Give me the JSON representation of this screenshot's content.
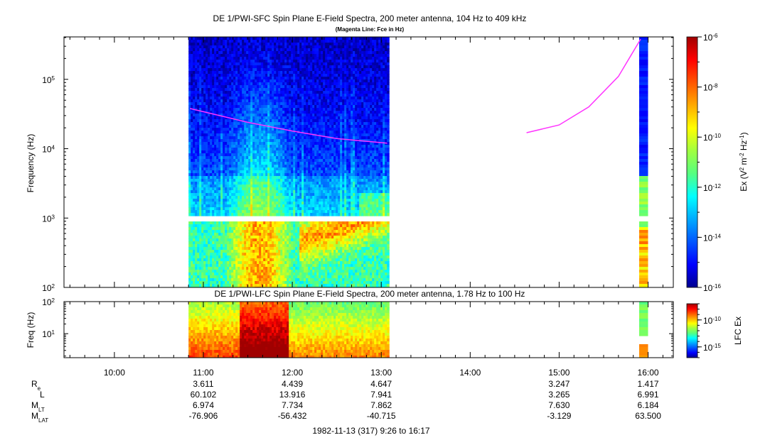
{
  "colors": {
    "fce_line": "#ff33ff",
    "background": "#ffffff",
    "colorscale": [
      "#00008f",
      "#0000ff",
      "#0055ff",
      "#00aaff",
      "#00ffff",
      "#55ff80",
      "#a0ff40",
      "#ffff00",
      "#ffaa00",
      "#ff5500",
      "#ff0000",
      "#a00000"
    ]
  },
  "chart_data": [
    {
      "type": "heatmap",
      "title": "DE 1/PWI-SFC  Spin Plane E-Field Spectra, 200 meter antenna, 104 Hz to 409 kHz",
      "subtitle": "(Magenta Line: Fce in Hz)",
      "ylabel": "Frequency (Hz)",
      "yscale": "log",
      "ylim": [
        100,
        409000
      ],
      "y_ticks": [
        {
          "value": 100,
          "label_base": "10",
          "label_exp": "2"
        },
        {
          "value": 1000,
          "label_base": "10",
          "label_exp": "3"
        },
        {
          "value": 10000,
          "label_base": "10",
          "label_exp": "4"
        },
        {
          "value": 100000,
          "label_base": "10",
          "label_exp": "5"
        }
      ],
      "colorbar": {
        "label": "Ex (V² m⁻² Hz⁻¹)",
        "scale": "log",
        "range": [
          -16,
          -6
        ],
        "ticks": [
          {
            "value": -6,
            "label_base": "10",
            "label_exp": "-6"
          },
          {
            "value": -8,
            "label_base": "10",
            "label_exp": "-8"
          },
          {
            "value": -10,
            "label_base": "10",
            "label_exp": "-10"
          },
          {
            "value": -12,
            "label_base": "10",
            "label_exp": "-12"
          },
          {
            "value": -14,
            "label_base": "10",
            "label_exp": "-14"
          },
          {
            "value": -16,
            "label_base": "10",
            "label_exp": "-16"
          }
        ]
      },
      "data_intervals": [
        "10:50",
        "13:05",
        "15:54",
        "16:00"
      ],
      "series": [
        {
          "name": "Fce",
          "segments": [
            {
              "time": [
                "10:51",
                "11:30",
                "12:00",
                "12:30",
                "13:04"
              ],
              "freq_hz": [
                38000,
                24000,
                18000,
                14000,
                12000
              ]
            },
            {
              "time": [
                "14:38",
                "15:00",
                "15:20",
                "15:40",
                "15:55"
              ],
              "freq_hz": [
                17000,
                22000,
                40000,
                110000,
                380000
              ]
            }
          ]
        }
      ]
    },
    {
      "type": "heatmap",
      "title": "DE 1/PWI-LFC  Spin Plane E-Field Spectra, 200 meter antenna, 1.78 Hz to 100 Hz",
      "ylabel": "Freq (Hz)",
      "yscale": "log",
      "ylim": [
        1.78,
        100
      ],
      "y_ticks": [
        {
          "value": 10,
          "label_base": "10",
          "label_exp": "1"
        },
        {
          "value": 100,
          "label_base": "10",
          "label_exp": "2"
        }
      ],
      "colorbar": {
        "label": "LFC Ex",
        "scale": "log",
        "range": [
          -17,
          -7
        ],
        "ticks": [
          {
            "value": -10,
            "label_base": "10",
            "label_exp": "-10"
          },
          {
            "value": -15,
            "label_base": "10",
            "label_exp": "-15"
          }
        ]
      },
      "data_intervals": [
        "10:50",
        "13:05",
        "15:54",
        "16:00"
      ]
    }
  ],
  "time_axis": {
    "range": [
      "09:26",
      "16:17"
    ],
    "ticks": [
      "10:00",
      "11:00",
      "12:00",
      "13:00",
      "14:00",
      "15:00",
      "16:00"
    ]
  },
  "ephemeris": {
    "rows": [
      {
        "label": "R",
        "sub": "e",
        "values": [
          "3.611",
          "4.439",
          "4.647",
          "",
          "3.247",
          "1.417"
        ]
      },
      {
        "label": "L",
        "sub": "",
        "values": [
          "60.102",
          "13.916",
          "7.941",
          "",
          "3.265",
          "6.991"
        ]
      },
      {
        "label": "M",
        "sub": "LT",
        "values": [
          "6.974",
          "7.734",
          "7.862",
          "",
          "7.630",
          "6.184"
        ]
      },
      {
        "label": "M",
        "sub": "LAT",
        "values": [
          "-76.906",
          "-56.432",
          "-40.715",
          "",
          "-3.129",
          "63.500"
        ]
      }
    ]
  },
  "footer": "1982-11-13 (317) 9:26 to 16:17"
}
